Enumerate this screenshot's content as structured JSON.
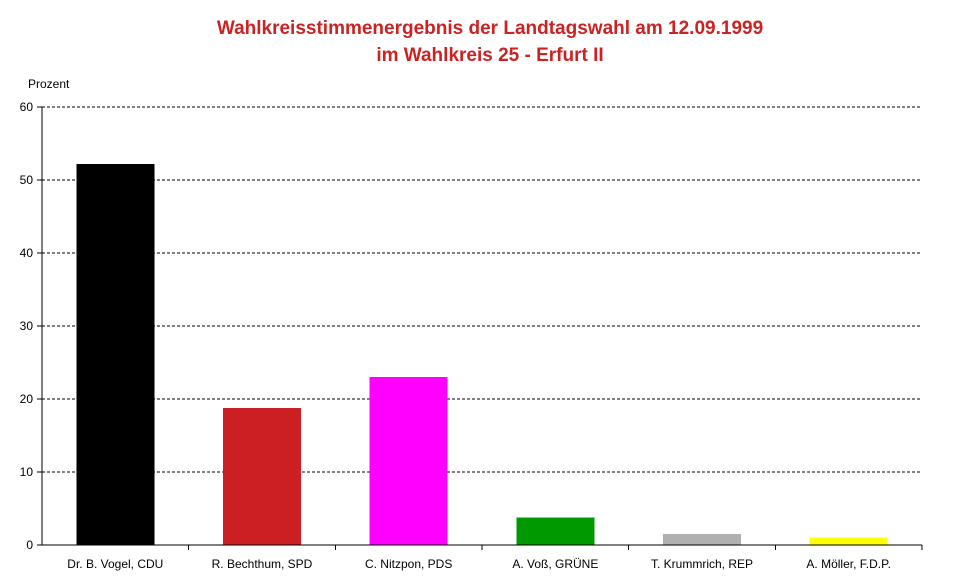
{
  "chart_data": {
    "type": "bar",
    "title": "Wahlkreisstimmenergebnis der Landtagswahl am 12.09.1999",
    "subtitle": "im Wahlkreis 25 - Erfurt II",
    "ylabel": "Prozent",
    "xlabel": "",
    "ylim": [
      0,
      60
    ],
    "yticks": [
      0,
      10,
      20,
      30,
      40,
      50,
      60
    ],
    "grid": true,
    "categories": [
      "Dr. B. Vogel, CDU",
      "R. Bechthum, SPD",
      "C. Nitzpon, PDS",
      "A. Voß, GRÜNE",
      "T. Krummrich, REP",
      "A. Möller, F.D.P."
    ],
    "values": [
      52.2,
      18.8,
      23.0,
      3.8,
      1.5,
      1.0
    ],
    "colors": [
      "#000000",
      "#cc1f24",
      "#ff00ff",
      "#009900",
      "#b0b0b0",
      "#ffff00"
    ]
  }
}
